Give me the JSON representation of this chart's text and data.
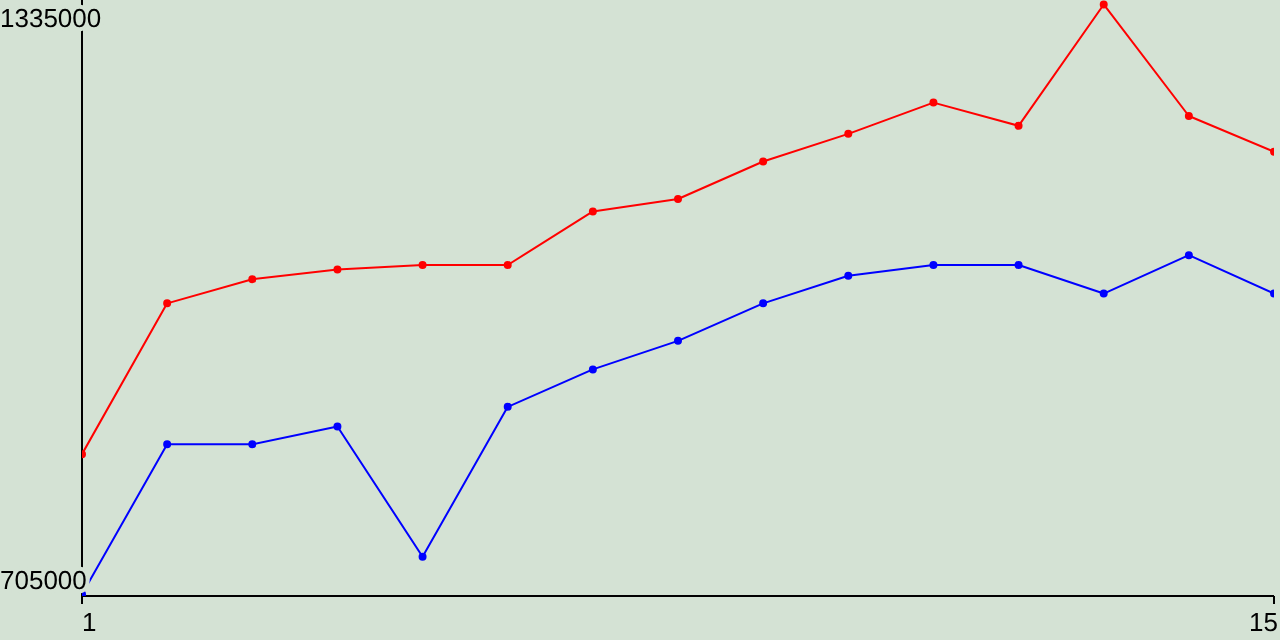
{
  "chart_data": {
    "type": "line",
    "x": [
      1,
      2,
      3,
      4,
      5,
      6,
      7,
      8,
      9,
      10,
      11,
      12,
      13,
      14,
      15
    ],
    "series": [
      {
        "color": "#ff0000",
        "values": [
          846000,
          1015000,
          1042000,
          1053000,
          1058000,
          1058000,
          1118000,
          1132000,
          1174000,
          1205000,
          1240000,
          1214000,
          1350000,
          1225000,
          1185000
        ]
      },
      {
        "color": "#0000ff",
        "values": [
          689000,
          857000,
          857000,
          877000,
          731000,
          899000,
          941000,
          973000,
          1015000,
          1046000,
          1058000,
          1058000,
          1026000,
          1069000,
          1026000
        ]
      }
    ],
    "xlim": [
      1,
      15
    ],
    "xticks": [
      1,
      15
    ],
    "ylim": [
      687000,
      1355000
    ],
    "yticks": [
      705000,
      1335000
    ],
    "grid": false,
    "legend": false,
    "marker": "circle",
    "line_style": "solid"
  }
}
